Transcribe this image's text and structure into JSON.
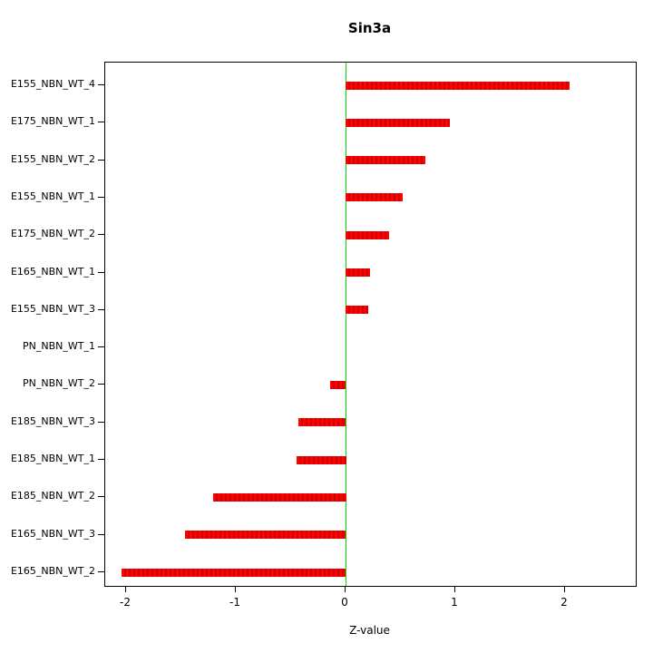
{
  "chart_data": {
    "type": "bar",
    "orientation": "horizontal",
    "title": "Sin3a",
    "xlabel": "Z-value",
    "ylabel": "",
    "xlim": [
      -2.19,
      2.64
    ],
    "x_ticks": [
      "-2",
      "-1",
      "0",
      "1",
      "2"
    ],
    "x_tick_values": [
      -2,
      -1,
      0,
      1,
      2
    ],
    "grid": false,
    "legend": "none",
    "bar_color": "#ff0000",
    "bar_color_dark": "#cc0000",
    "zero_line_color": "#00dd00",
    "categories": [
      "E155_NBN_WT_4",
      "E175_NBN_WT_1",
      "E155_NBN_WT_2",
      "E155_NBN_WT_1",
      "E175_NBN_WT_2",
      "E165_NBN_WT_1",
      "E155_NBN_WT_3",
      "PN_NBN_WT_1",
      "PN_NBN_WT_2",
      "E185_NBN_WT_3",
      "E185_NBN_WT_1",
      "E185_NBN_WT_2",
      "E165_NBN_WT_3",
      "E165_NBN_WT_2"
    ],
    "values": [
      2.04,
      0.95,
      0.73,
      0.52,
      0.4,
      0.22,
      0.21,
      0.0,
      -0.14,
      -0.43,
      -0.45,
      -1.21,
      -1.46,
      -2.04
    ]
  }
}
